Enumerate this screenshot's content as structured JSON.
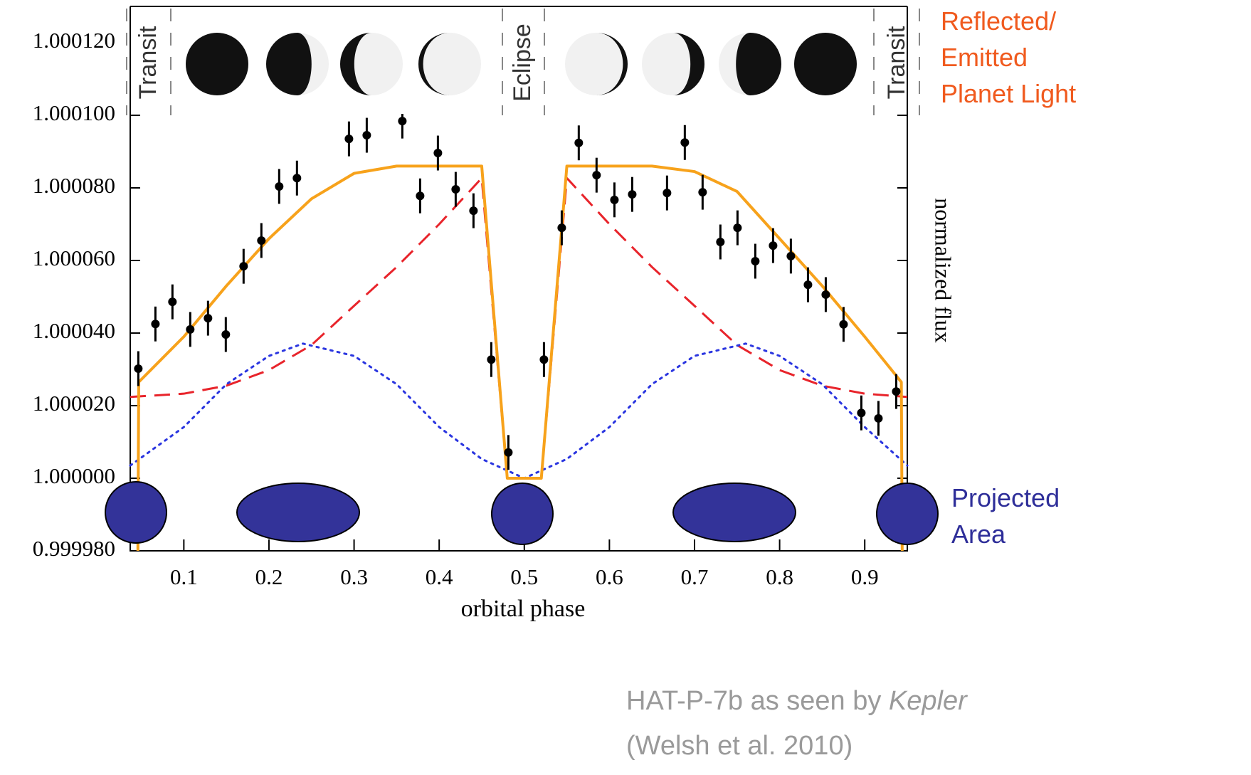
{
  "chart_data": {
    "type": "line",
    "xlabel": "orbital phase",
    "ylabel": "normalized flux",
    "xlim": [
      0.037,
      0.95
    ],
    "ylim": [
      0.99998,
      1.00013
    ],
    "xticks": [
      0.1,
      0.2,
      0.3,
      0.4,
      0.5,
      0.6,
      0.7,
      0.8,
      0.9
    ],
    "yticks": [
      {
        "value": 0.99998,
        "label": "0.999980"
      },
      {
        "value": 1.0,
        "label": "1.000000"
      },
      {
        "value": 1.00002,
        "label": "1.000020"
      },
      {
        "value": 1.00004,
        "label": "1.000040"
      },
      {
        "value": 1.00006,
        "label": "1.000060"
      },
      {
        "value": 1.00008,
        "label": "1.000080"
      },
      {
        "value": 1.0001,
        "label": "1.000100"
      },
      {
        "value": 1.00012,
        "label": "1.000120"
      }
    ],
    "series": [
      {
        "color": "#e8242b",
        "style": "dashed",
        "x": [
          0.037,
          0.1,
          0.15,
          0.2,
          0.25,
          0.3,
          0.35,
          0.4,
          0.45,
          0.48,
          0.52,
          0.55,
          0.6,
          0.65,
          0.7,
          0.75,
          0.8,
          0.85,
          0.9,
          0.95
        ],
        "values": [
          1.0000224,
          1.0000233,
          1.0000255,
          1.0000298,
          1.0000367,
          1.0000475,
          1.0000582,
          1.00007,
          1.0000827,
          1.0,
          1.0,
          1.0000827,
          1.00007,
          1.0000582,
          1.0000475,
          1.0000367,
          1.0000298,
          1.0000255,
          1.0000233,
          1.0000224
        ]
      },
      {
        "color": "#2a35e0",
        "style": "dotted",
        "x": [
          0.037,
          0.1,
          0.15,
          0.2,
          0.24,
          0.3,
          0.35,
          0.4,
          0.45,
          0.5,
          0.55,
          0.6,
          0.65,
          0.7,
          0.76,
          0.8,
          0.85,
          0.9,
          0.95
        ],
        "values": [
          1.0000035,
          1.0000141,
          1.0000259,
          1.0000337,
          1.0000371,
          1.0000337,
          1.0000259,
          1.0000141,
          1.0000053,
          1.0,
          1.0000053,
          1.0000141,
          1.0000259,
          1.0000337,
          1.0000371,
          1.0000337,
          1.0000259,
          1.0000141,
          1.0000035
        ]
      },
      {
        "color": "#f7a21b",
        "style": "solid",
        "x": [
          0.046,
          0.047,
          0.1,
          0.15,
          0.2,
          0.25,
          0.3,
          0.35,
          0.45,
          0.48,
          0.52,
          0.55,
          0.65,
          0.7,
          0.75,
          0.8,
          0.85,
          0.9,
          0.943,
          0.944
        ],
        "values": [
          0.99998,
          1.0000265,
          1.000039,
          1.000053,
          1.000066,
          1.000077,
          1.000084,
          1.000086,
          1.000086,
          1.0,
          1.0,
          1.000086,
          1.000086,
          1.0000845,
          1.000079,
          1.000066,
          1.000053,
          1.000039,
          1.0000265,
          0.99998
        ]
      },
      {
        "color": "#000000",
        "style": "points",
        "x": [
          0.0465,
          0.0666,
          0.0866,
          0.1075,
          0.1284,
          0.1493,
          0.1702,
          0.1911,
          0.212,
          0.2329,
          0.294,
          0.3149,
          0.3567,
          0.3776,
          0.3985,
          0.4194,
          0.4403,
          0.4612,
          0.4813,
          0.5231,
          0.544,
          0.564,
          0.5849,
          0.6059,
          0.6268,
          0.6677,
          0.6886,
          0.7095,
          0.7304,
          0.7505,
          0.7714,
          0.7923,
          0.8132,
          0.8333,
          0.8542,
          0.8751,
          0.896,
          0.9161,
          0.937
        ],
        "values": [
          1.0000302,
          1.0000425,
          1.0000486,
          1.000041,
          1.0000441,
          1.0000396,
          1.0000584,
          1.0000655,
          1.0000804,
          1.0000827,
          1.0000935,
          1.0000945,
          1.0000984,
          1.0000778,
          1.0000896,
          1.0000796,
          1.0000737,
          1.0000327,
          1.0000071,
          1.0000327,
          1.000069,
          1.0000924,
          1.0000835,
          1.0000767,
          1.0000782,
          1.0000786,
          1.0000925,
          1.0000788,
          1.0000651,
          1.000069,
          1.0000598,
          1.0000641,
          1.0000612,
          1.0000533,
          1.0000506,
          1.0000424,
          1.000018,
          1.0000165,
          1.0000239
        ],
        "errors": [
          4.8e-06,
          4.8e-06,
          4.8e-06,
          4.8e-06,
          4.8e-06,
          4.8e-06,
          4.8e-06,
          4.8e-06,
          4.8e-06,
          4.8e-06,
          4.8e-06,
          4.8e-06,
          4.8e-06,
          4.8e-06,
          4.8e-06,
          4.8e-06,
          4.8e-06,
          4.8e-06,
          4.8e-06,
          4.8e-06,
          4.8e-06,
          4.8e-06,
          4.8e-06,
          4.8e-06,
          4.8e-06,
          4.8e-06,
          4.8e-06,
          4.8e-06,
          4.8e-06,
          4.8e-06,
          4.8e-06,
          4.8e-06,
          4.8e-06,
          4.8e-06,
          4.8e-06,
          4.8e-06,
          4.8e-06,
          4.8e-06,
          4.8e-06
        ]
      }
    ],
    "panel_labels": [
      "Transit",
      "Eclipse",
      "Transit"
    ],
    "light_label": {
      "lines": [
        "Reflected/",
        "Emitted",
        "Planet Light"
      ],
      "color": "#f05a1e"
    },
    "area_label": {
      "lines": [
        "Projected",
        "Area"
      ],
      "color": "#2e2e99"
    },
    "caption": {
      "before": "HAT-P-7b as seen by ",
      "italic": "Kepler",
      "line2": "(Welsh et al. 2010)",
      "color": "#9a9a9a"
    }
  }
}
